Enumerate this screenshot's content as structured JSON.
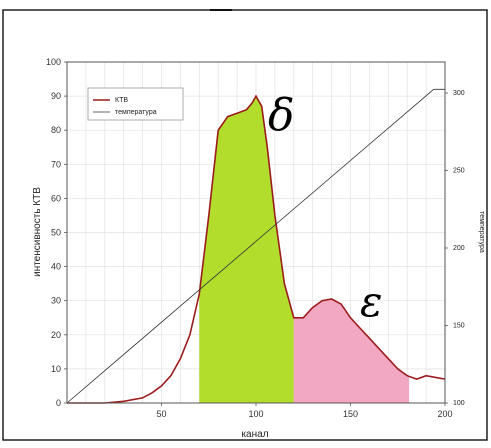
{
  "chart_data": {
    "type": "line",
    "xlabel": "канал",
    "ylabel": "интенсивность КТВ",
    "y2label": "температура",
    "xlim": [
      0,
      200
    ],
    "ylim": [
      0,
      100
    ],
    "y2lim": [
      100,
      320
    ],
    "x_ticks": [
      50,
      100,
      150,
      200
    ],
    "y_ticks": [
      0,
      10,
      20,
      30,
      40,
      50,
      60,
      70,
      80,
      90,
      100
    ],
    "y2_ticks": [
      100,
      150,
      200,
      250,
      300
    ],
    "grid": true,
    "legend_position": "top-left",
    "legend": [
      "КТВ",
      "температура"
    ],
    "series": [
      {
        "name": "КТВ",
        "color": "#9b1c1c",
        "x": [
          0,
          10,
          20,
          30,
          40,
          45,
          50,
          55,
          60,
          65,
          70,
          75,
          80,
          85,
          90,
          95,
          98,
          100,
          103,
          106,
          110,
          115,
          120,
          125,
          130,
          135,
          140,
          145,
          150,
          155,
          160,
          165,
          170,
          175,
          180,
          185,
          190,
          195,
          200
        ],
        "y": [
          0,
          0,
          0,
          0.5,
          1.5,
          3,
          5,
          8,
          13,
          20,
          32,
          55,
          80,
          84,
          85,
          86,
          88,
          90,
          87,
          75,
          55,
          35,
          25,
          25,
          28,
          30,
          30.5,
          29,
          25,
          22,
          19,
          16,
          13,
          10,
          8,
          7,
          8,
          7.5,
          7
        ]
      },
      {
        "name": "температура",
        "color": "#333333",
        "x": [
          0,
          194,
          200
        ],
        "y": [
          0,
          92,
          92
        ]
      }
    ],
    "shaded_regions": [
      {
        "label": "δ",
        "x_start": 70,
        "x_end": 120,
        "color": "#b2dd2d"
      },
      {
        "label": "ε",
        "x_start": 120,
        "x_end": 181,
        "color": "#f2a8c3"
      }
    ]
  }
}
